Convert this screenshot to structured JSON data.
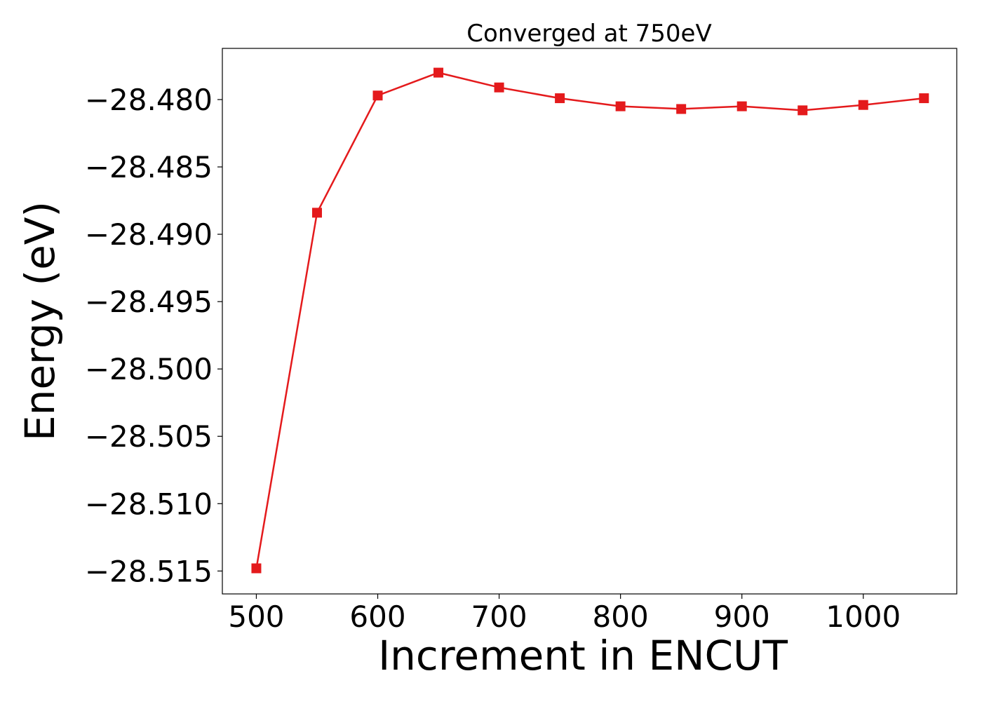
{
  "chart_data": {
    "type": "line",
    "title": "Converged at 750eV",
    "xlabel": "Increment in ENCUT",
    "ylabel": "Energy (eV)",
    "x": [
      500,
      550,
      600,
      650,
      700,
      750,
      800,
      850,
      900,
      950,
      1000,
      1050
    ],
    "series": [
      {
        "values": [
          -28.5148,
          -28.4884,
          -28.4797,
          -28.478,
          -28.4791,
          -28.4799,
          -28.4805,
          -28.4807,
          -28.4805,
          -28.4808,
          -28.4804,
          -28.4799
        ],
        "color": "#e41a1c",
        "marker": "square"
      }
    ],
    "xlim": [
      472,
      1077
    ],
    "ylim": [
      -28.5167,
      -28.4762
    ],
    "xticks": [
      500,
      600,
      700,
      800,
      900,
      1000
    ],
    "xtick_labels": [
      "500",
      "600",
      "700",
      "800",
      "900",
      "1000"
    ],
    "yticks": [
      -28.515,
      -28.51,
      -28.505,
      -28.5,
      -28.495,
      -28.49,
      -28.485,
      -28.48
    ],
    "ytick_labels": [
      "−28.515",
      "−28.510",
      "−28.505",
      "−28.500",
      "−28.495",
      "−28.490",
      "−28.485",
      "−28.480"
    ],
    "grid": false,
    "legend": "none"
  }
}
